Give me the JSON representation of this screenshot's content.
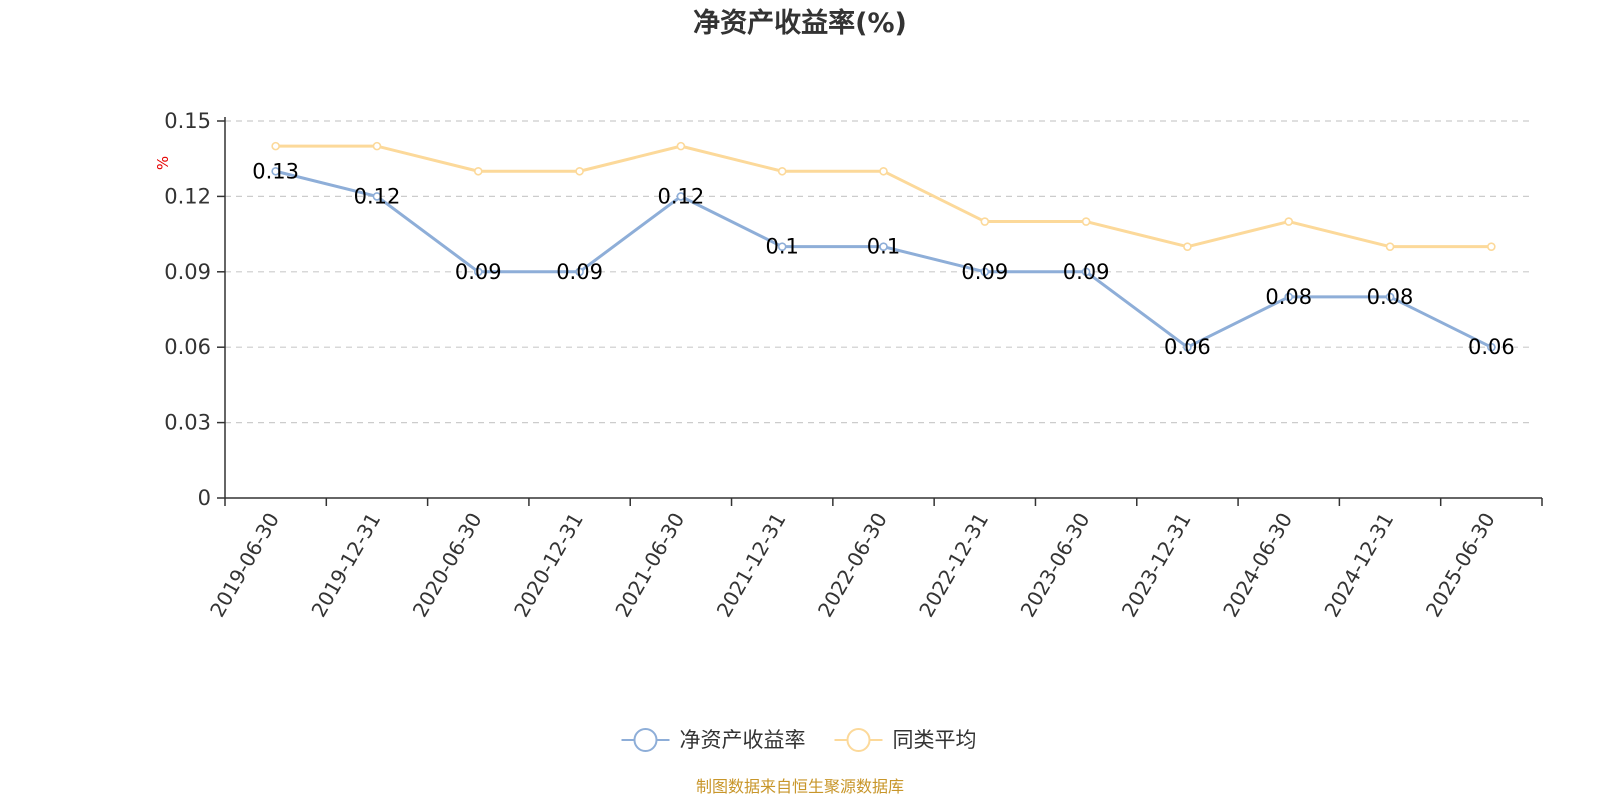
{
  "chart_data": {
    "type": "line",
    "title": "净资产收益率(%)",
    "ylabel": "%",
    "categories": [
      "2019-06-30",
      "2019-12-31",
      "2020-06-30",
      "2020-12-31",
      "2021-06-30",
      "2021-12-31",
      "2022-06-30",
      "2022-12-31",
      "2023-06-30",
      "2023-12-31",
      "2024-06-30",
      "2024-12-31",
      "2025-06-30"
    ],
    "series": [
      {
        "name": "净资产收益率",
        "color": "#8eaed8",
        "labels": true,
        "values": [
          0.13,
          0.12,
          0.09,
          0.09,
          0.12,
          0.1,
          0.1,
          0.09,
          0.09,
          0.06,
          0.08,
          0.08,
          0.06
        ]
      },
      {
        "name": "同类平均",
        "color": "#fcd99a",
        "labels": false,
        "values": [
          0.14,
          0.14,
          0.13,
          0.13,
          0.14,
          0.13,
          0.13,
          0.11,
          0.11,
          0.1,
          0.11,
          0.1,
          0.1
        ]
      }
    ],
    "yticks": [
      "0",
      "0.03",
      "0.06",
      "0.09",
      "0.12",
      "0.15"
    ],
    "ylim": [
      0,
      0.15
    ],
    "grid": true,
    "legend_position": "bottom-center"
  },
  "source_note": "制图数据来自恒生聚源数据库"
}
